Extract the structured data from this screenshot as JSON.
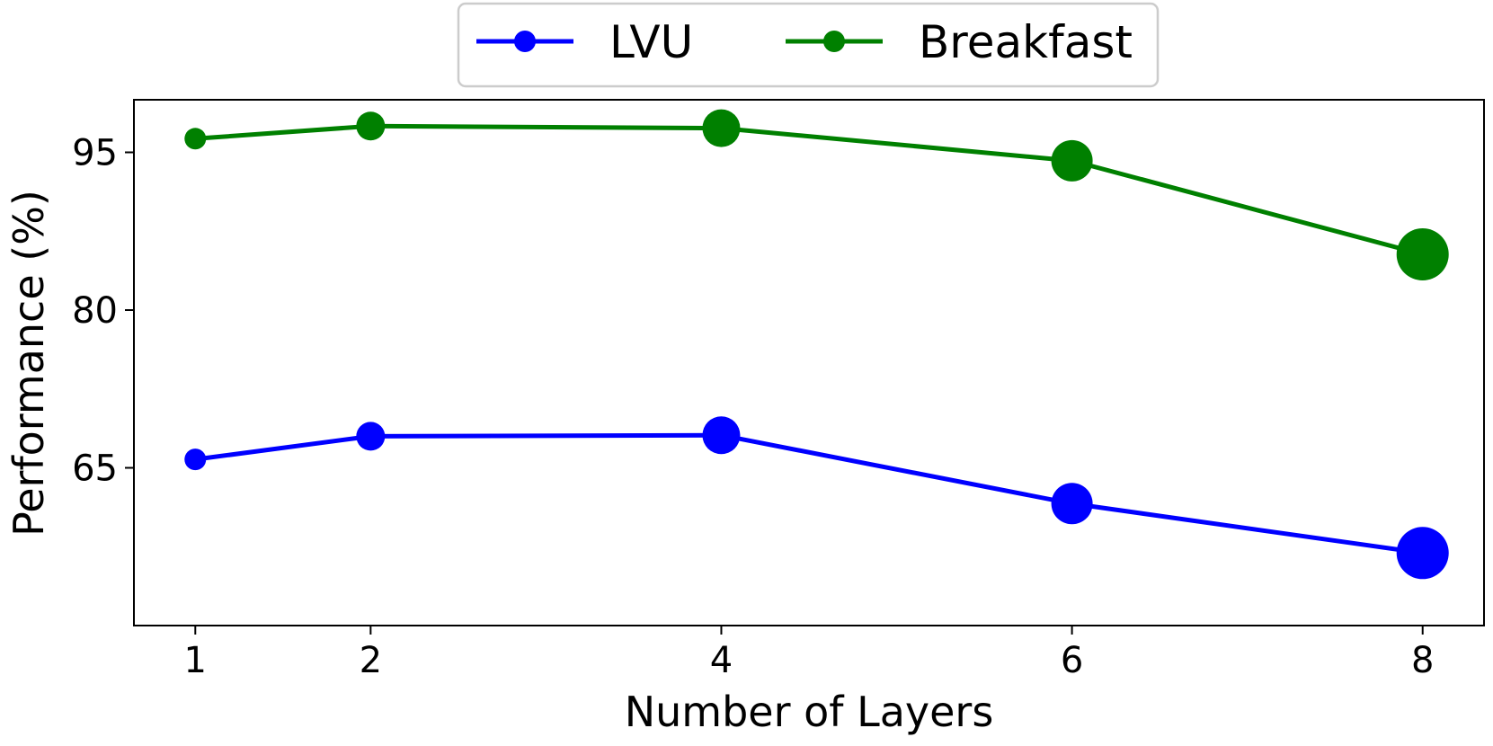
{
  "chart_data": {
    "type": "line",
    "xlabel": "Number of Layers",
    "ylabel": "Performance (%)",
    "x": [
      1,
      2,
      4,
      6,
      8
    ],
    "xticks": [
      "1",
      "2",
      "4",
      "6",
      "8"
    ],
    "xlim": [
      0.65,
      8.35
    ],
    "yticks": [
      "65",
      "80",
      "95"
    ],
    "ylim": [
      50,
      100
    ],
    "grid": false,
    "legend_position": "top-center",
    "series": [
      {
        "name": "LVU",
        "color": "#0000ff",
        "values": [
          65.8,
          68.0,
          68.1,
          61.6,
          56.9
        ]
      },
      {
        "name": "Breakfast",
        "color": "#008000",
        "values": [
          96.3,
          97.5,
          97.3,
          94.2,
          85.3
        ]
      }
    ]
  }
}
